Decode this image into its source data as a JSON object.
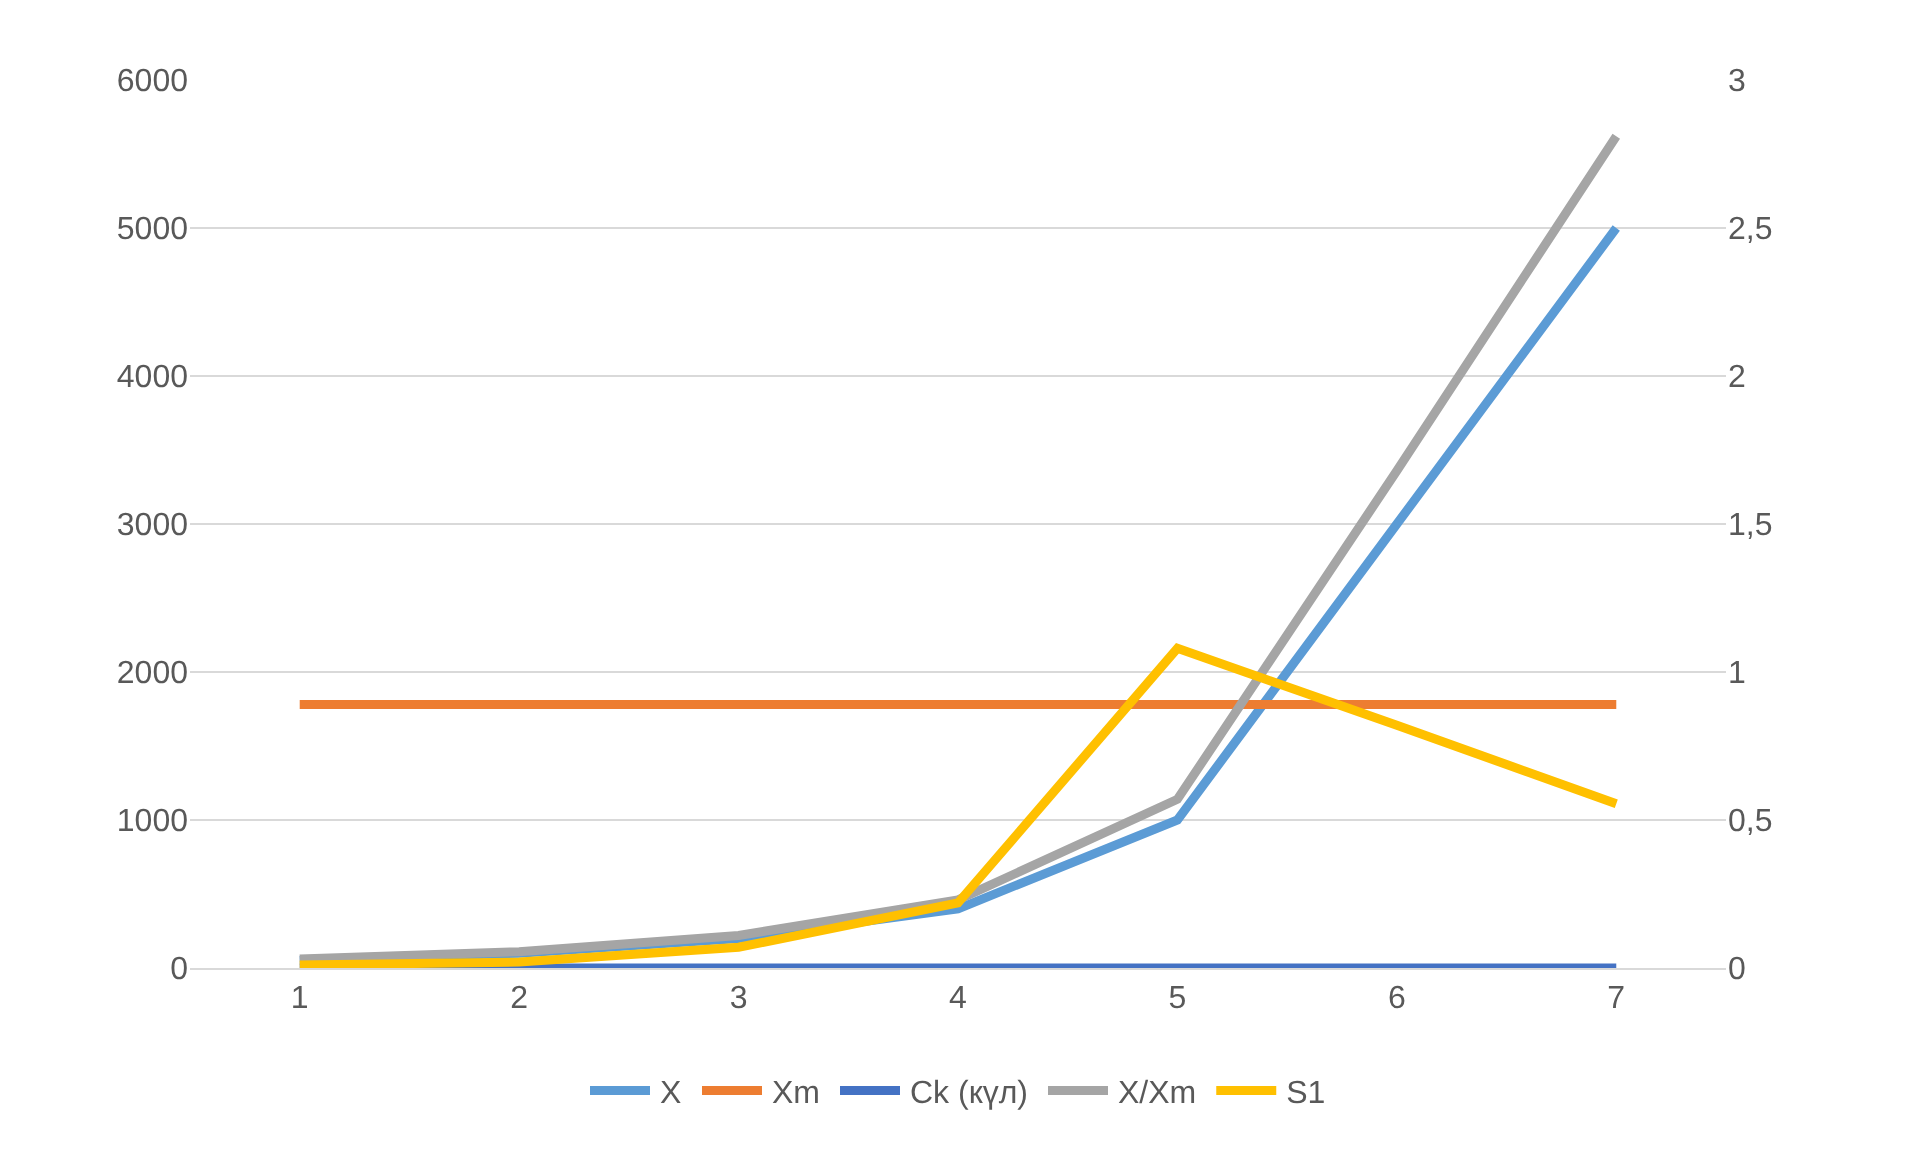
{
  "chart_data": {
    "type": "line",
    "categories": [
      "1",
      "2",
      "3",
      "4",
      "5",
      "6",
      "7"
    ],
    "series": [
      {
        "name": "X",
        "color": "#5b9bd5",
        "values": [
          50,
          100,
          200,
          400,
          1000,
          3000,
          5000
        ]
      },
      {
        "name": "Xm",
        "color": "#ed7d31",
        "values": [
          1780,
          1780,
          1780,
          1780,
          1780,
          1780,
          1780
        ]
      },
      {
        "name": "Ck (күл)",
        "color": "#4472c4",
        "values": [
          0,
          0,
          0,
          0,
          0,
          0,
          0
        ]
      },
      {
        "name": "X/Xm",
        "color": "#a5a5a5",
        "axis": "y2",
        "values": [
          0.03,
          0.055,
          0.11,
          0.23,
          0.57,
          1.68,
          2.81
        ]
      },
      {
        "name": "S1",
        "color": "#ffc000",
        "axis": "y2",
        "values": [
          0.01,
          0.02,
          0.07,
          0.22,
          1.08,
          0.82,
          0.555
        ]
      }
    ],
    "ylim": [
      0,
      6000
    ],
    "yticks": [
      0,
      1000,
      2000,
      3000,
      4000,
      5000,
      6000
    ],
    "y2lim": [
      0,
      3
    ],
    "y2ticks": [
      0,
      {
        "value": 0.5,
        "label": "0,5"
      },
      1,
      {
        "value": 1.5,
        "label": "1,5"
      },
      2,
      {
        "value": 2.5,
        "label": "2,5"
      },
      3
    ],
    "grid": "y",
    "legend": "bottom",
    "marker": "none",
    "line_style": "solid"
  }
}
